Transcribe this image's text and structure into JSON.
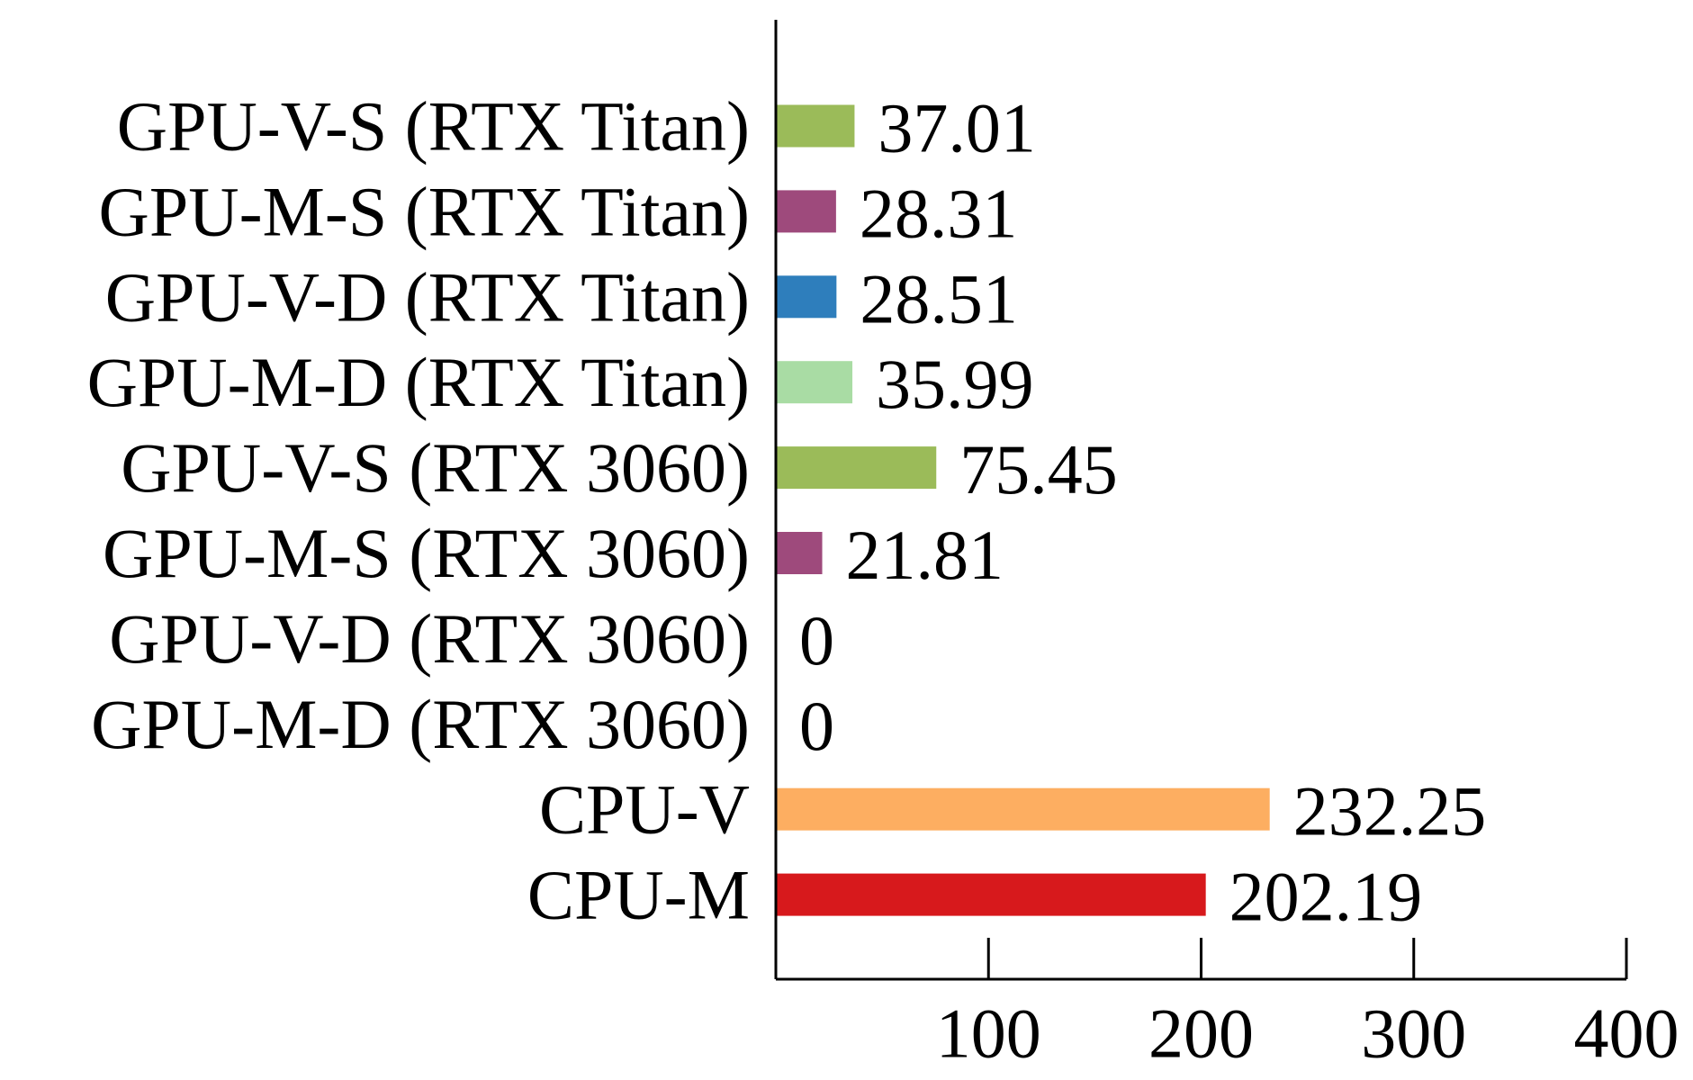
{
  "chart_data": {
    "type": "bar",
    "orientation": "horizontal",
    "title": "",
    "xlabel": "",
    "ylabel": "",
    "categories": [
      "GPU-V-S (RTX Titan)",
      "GPU-M-S (RTX Titan)",
      "GPU-V-D (RTX Titan)",
      "GPU-M-D (RTX Titan)",
      "GPU-V-S (RTX 3060)",
      "GPU-M-S (RTX 3060)",
      "GPU-V-D (RTX 3060)",
      "GPU-M-D (RTX 3060)",
      "CPU-V",
      "CPU-M"
    ],
    "values": [
      37.01,
      28.31,
      28.51,
      35.99,
      75.45,
      21.81,
      0,
      0,
      232.25,
      202.19
    ],
    "value_labels": [
      "37.01",
      "28.31",
      "28.51",
      "35.99",
      "75.45",
      "21.81",
      "0",
      "0",
      "232.25",
      "202.19"
    ],
    "colors": [
      "#9bbb59",
      "#9e4a7c",
      "#2e7ebc",
      "#a9dca4",
      "#9bbb59",
      "#9e4a7c",
      "#2e7ebc",
      "#a9dca4",
      "#fdae61",
      "#d7191c"
    ],
    "xlim": [
      0,
      400
    ],
    "xticks": [
      100,
      200,
      300,
      400
    ],
    "xtick_labels": [
      "100",
      "200",
      "300",
      "400"
    ],
    "grid": false,
    "legend": "none"
  }
}
